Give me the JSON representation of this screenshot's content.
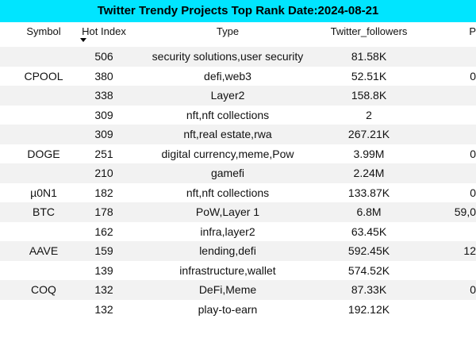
{
  "header": {
    "title": "Twitter Trendy Projects Top Rank Date:2024-08-21"
  },
  "table": {
    "columns": [
      "Symbol",
      "Hot Index",
      "Type",
      "Twitter_followers",
      "P"
    ],
    "rows": [
      [
        null,
        506,
        "security solutions,user security",
        "81.58K",
        null
      ],
      [
        "CPOOL",
        380,
        "defi,web3",
        "52.51K",
        "0"
      ],
      [
        null,
        338,
        "Layer2",
        "158.8K",
        null
      ],
      [
        null,
        309,
        "nft,nft collections",
        "2",
        null
      ],
      [
        null,
        309,
        "nft,real estate,rwa",
        "267.21K",
        null
      ],
      [
        "DOGE",
        251,
        "digital currency,meme,Pow",
        "3.99M",
        "0"
      ],
      [
        null,
        210,
        "gamefi",
        "2.24M",
        null
      ],
      [
        "µ0N1",
        182,
        "nft,nft collections",
        "133.87K",
        "0"
      ],
      [
        "BTC",
        178,
        "PoW,Layer 1",
        "6.8M",
        "59,0"
      ],
      [
        null,
        162,
        "infra,layer2",
        "63.45K",
        null
      ],
      [
        "AAVE",
        159,
        "lending,defi",
        "592.45K",
        "12"
      ],
      [
        null,
        139,
        "infrastructure,wallet",
        "574.52K",
        null
      ],
      [
        "COQ",
        132,
        "DeFi,Meme",
        "87.33K",
        "0"
      ],
      [
        null,
        132,
        "play-to-earn",
        "192.12K",
        null
      ]
    ]
  }
}
